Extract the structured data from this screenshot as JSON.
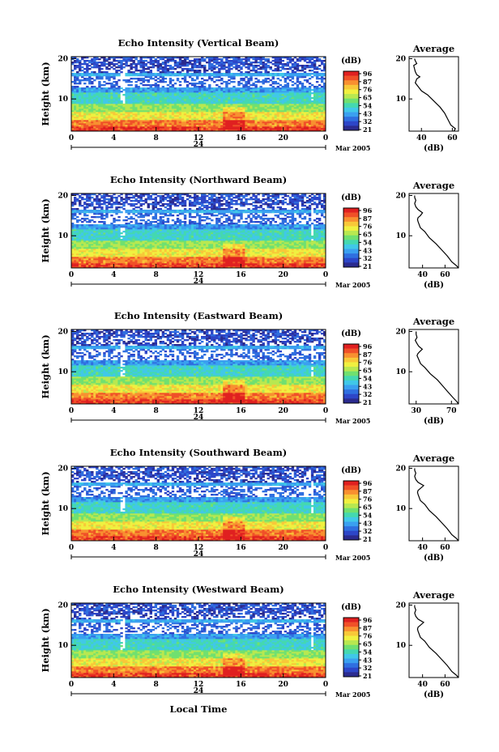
{
  "figure": {
    "xlabel": "Local Time",
    "date_label": "Mar 2005",
    "day_label": "24",
    "average_title": "Average",
    "unit_label": "(dB)",
    "ylabel": "Height (km)"
  },
  "colorbar": {
    "ticks": [
      "96",
      "87",
      "76",
      "65",
      "54",
      "43",
      "32",
      "21"
    ],
    "colors": [
      "#2b2b8f",
      "#2d46c8",
      "#2f6fe0",
      "#3aa0f0",
      "#40c8e8",
      "#44d8b0",
      "#70e070",
      "#b8e850",
      "#f0f040",
      "#f8c838",
      "#f89030",
      "#f05028",
      "#e02020"
    ]
  },
  "chart_data": [
    {
      "type": "heatmap",
      "title": "Echo Intensity (Vertical Beam)",
      "x_ticks": [
        "0",
        "4",
        "8",
        "12",
        "16",
        "20",
        "0"
      ],
      "y_ticks": [
        "20",
        "10"
      ],
      "xlim": [
        0,
        24
      ],
      "ylim": [
        2,
        20.5
      ],
      "avg": {
        "x_ticks": [
          "40",
          "60"
        ],
        "xlim": [
          32,
          64
        ],
        "profile": [
          [
            61,
            2
          ],
          [
            62,
            2.6
          ],
          [
            59,
            3.5
          ],
          [
            57,
            5
          ],
          [
            55,
            6.5
          ],
          [
            52,
            8
          ],
          [
            48,
            9.5
          ],
          [
            44,
            11
          ],
          [
            40,
            12
          ],
          [
            37,
            13.5
          ],
          [
            36,
            14
          ],
          [
            36.5,
            14.5
          ],
          [
            37,
            15
          ],
          [
            39,
            15.5
          ],
          [
            37,
            16
          ],
          [
            36,
            16.8
          ],
          [
            35.5,
            17.5
          ],
          [
            35,
            18.3
          ],
          [
            37,
            18.8
          ],
          [
            36,
            19.5
          ],
          [
            35.5,
            20
          ]
        ]
      }
    },
    {
      "type": "heatmap",
      "title": "Echo Intensity (Northward Beam)",
      "x_ticks": [
        "0",
        "4",
        "8",
        "12",
        "16",
        "20",
        "0"
      ],
      "y_ticks": [
        "20",
        "10"
      ],
      "xlim": [
        0,
        24
      ],
      "ylim": [
        2,
        20.5
      ],
      "avg": {
        "x_ticks": [
          "40",
          "60"
        ],
        "xlim": [
          28,
          72
        ],
        "profile": [
          [
            72,
            2
          ],
          [
            70,
            2.6
          ],
          [
            66,
            3.5
          ],
          [
            62,
            5
          ],
          [
            57,
            6.5
          ],
          [
            52,
            8
          ],
          [
            46,
            9.5
          ],
          [
            42,
            11
          ],
          [
            38,
            12
          ],
          [
            36,
            13.5
          ],
          [
            35.5,
            14
          ],
          [
            36,
            14.5
          ],
          [
            38,
            15
          ],
          [
            40,
            15.7
          ],
          [
            36,
            16.5
          ],
          [
            34,
            17.2
          ],
          [
            33,
            18
          ],
          [
            34,
            18.8
          ],
          [
            33,
            19.5
          ],
          [
            33,
            20
          ]
        ]
      }
    },
    {
      "type": "heatmap",
      "title": "Echo Intensity (Eastward Beam)",
      "x_ticks": [
        "0",
        "4",
        "8",
        "12",
        "16",
        "20",
        "0"
      ],
      "y_ticks": [
        "20",
        "10"
      ],
      "xlim": [
        0,
        24
      ],
      "ylim": [
        2,
        20.5
      ],
      "avg": {
        "x_ticks": [
          "30",
          "70"
        ],
        "xlim": [
          22,
          78
        ],
        "profile": [
          [
            78,
            2
          ],
          [
            76,
            2.6
          ],
          [
            72,
            3.5
          ],
          [
            66,
            5
          ],
          [
            60,
            6.5
          ],
          [
            54,
            8
          ],
          [
            46,
            9.5
          ],
          [
            40,
            11
          ],
          [
            35,
            12
          ],
          [
            32,
            13.5
          ],
          [
            31,
            14
          ],
          [
            32,
            14.5
          ],
          [
            34,
            15
          ],
          [
            37,
            15.6
          ],
          [
            33,
            16.3
          ],
          [
            31,
            17
          ],
          [
            29,
            17.8
          ],
          [
            31,
            18.5
          ],
          [
            30,
            19.3
          ],
          [
            30,
            20
          ]
        ]
      }
    },
    {
      "type": "heatmap",
      "title": "Echo Intensity (Southward Beam)",
      "x_ticks": [
        "0",
        "4",
        "8",
        "12",
        "16",
        "20",
        "0"
      ],
      "y_ticks": [
        "20",
        "10"
      ],
      "xlim": [
        0,
        24
      ],
      "ylim": [
        2,
        20.5
      ],
      "avg": {
        "x_ticks": [
          "40",
          "60"
        ],
        "xlim": [
          28,
          72
        ],
        "profile": [
          [
            72,
            2
          ],
          [
            70,
            2.6
          ],
          [
            66,
            3.5
          ],
          [
            62,
            5
          ],
          [
            57,
            6.5
          ],
          [
            52,
            8
          ],
          [
            46,
            9.5
          ],
          [
            42,
            11
          ],
          [
            38,
            12
          ],
          [
            36,
            13.5
          ],
          [
            35.5,
            14
          ],
          [
            36,
            14.5
          ],
          [
            38,
            15
          ],
          [
            41,
            15.7
          ],
          [
            36,
            16.5
          ],
          [
            34,
            17.2
          ],
          [
            33,
            18
          ],
          [
            34,
            18.8
          ],
          [
            33,
            19.5
          ],
          [
            33,
            20
          ]
        ]
      }
    },
    {
      "type": "heatmap",
      "title": "Echo Intensity (Westward Beam)",
      "x_ticks": [
        "0",
        "4",
        "8",
        "12",
        "16",
        "20",
        "0"
      ],
      "y_ticks": [
        "20",
        "10"
      ],
      "xlim": [
        0,
        24
      ],
      "ylim": [
        2,
        20.5
      ],
      "avg": {
        "x_ticks": [
          "40",
          "60"
        ],
        "xlim": [
          28,
          72
        ],
        "profile": [
          [
            72,
            2
          ],
          [
            70,
            2.6
          ],
          [
            66,
            3.5
          ],
          [
            62,
            5
          ],
          [
            57,
            6.5
          ],
          [
            52,
            8
          ],
          [
            46,
            9.5
          ],
          [
            42,
            11
          ],
          [
            38,
            12
          ],
          [
            36,
            13.5
          ],
          [
            35.5,
            14
          ],
          [
            36,
            14.5
          ],
          [
            38,
            15
          ],
          [
            41,
            15.7
          ],
          [
            36,
            16.5
          ],
          [
            34,
            17.2
          ],
          [
            33,
            18
          ],
          [
            34,
            18.8
          ],
          [
            33,
            19.5
          ],
          [
            33,
            20
          ]
        ]
      }
    }
  ]
}
